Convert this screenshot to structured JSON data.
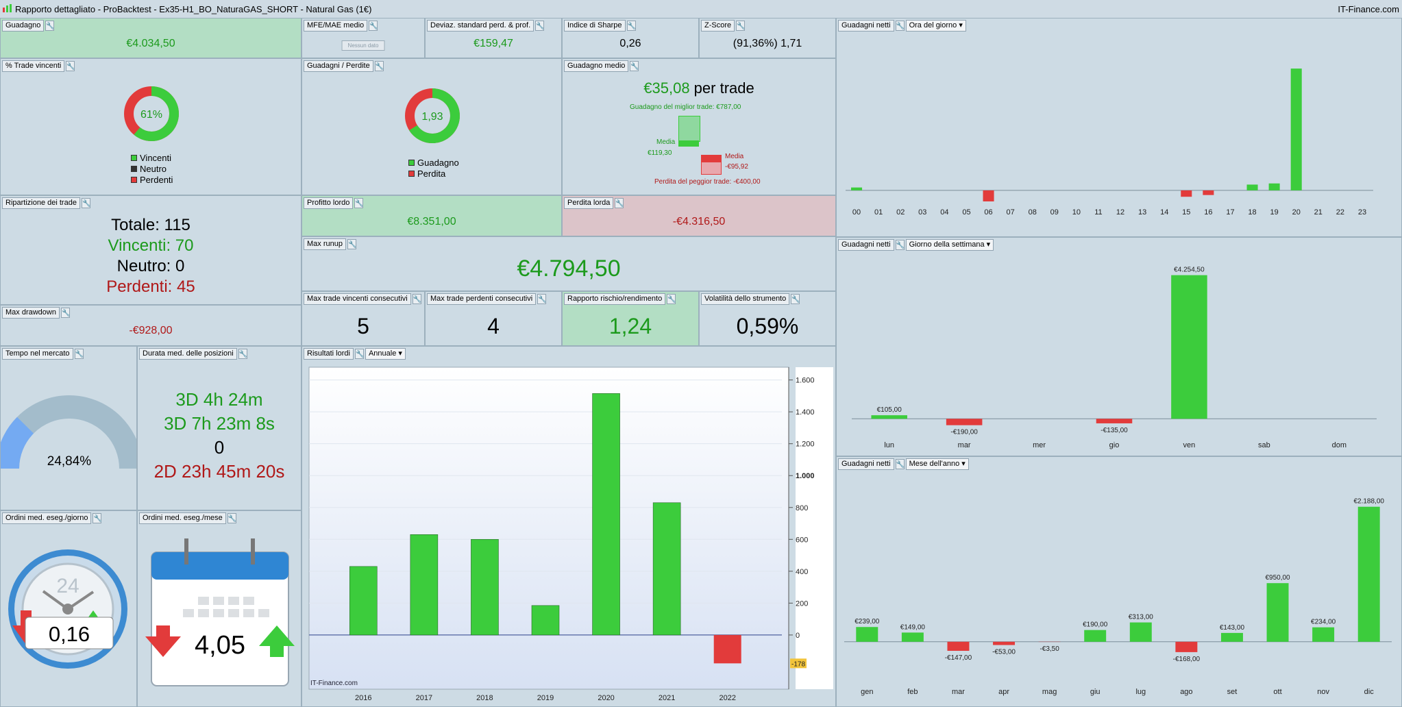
{
  "window": {
    "title": "Rapporto dettagliato - ProBacktest - Ex35-H1_BO_NaturaGAS_SHORT - Natural Gas (1€)",
    "brand": "IT-Finance.com"
  },
  "colors": {
    "green": "#3ccc3c",
    "red": "#e23b3b",
    "green_text": "#1c9a1c",
    "red_text": "#b01818",
    "gauge": "#74aaf2"
  },
  "icons": {
    "wrench": "wrench-icon",
    "dropdown": "chevron-down-icon",
    "clock": "clock-icon",
    "calendar": "calendar-icon",
    "arrow_down": "red-arrow-down-icon",
    "arrow_up": "green-arrow-up-icon"
  },
  "guadagno": {
    "label": "Guadagno",
    "value": "€4.034,50"
  },
  "mfe": {
    "label": "MFE/MAE medio",
    "value": "Nessun dato"
  },
  "deviaz": {
    "label": "Deviaz. standard perd. & prof.",
    "value": "€159,47"
  },
  "sharpe": {
    "label": "Indice di Sharpe",
    "value": "0,26"
  },
  "zscore": {
    "label": "Z-Score",
    "value": "(91,36%) 1,71"
  },
  "winpct": {
    "label": "% Trade vincenti",
    "center": "61%",
    "fraction": 0.61,
    "legend": [
      "Vincenti",
      "Neutro",
      "Perdenti"
    ]
  },
  "gainloss": {
    "label": "Guadagni / Perdite",
    "center": "1,93",
    "fraction": 0.66,
    "legend": [
      "Guadagno",
      "Perdita"
    ]
  },
  "avg": {
    "label": "Guadagno medio",
    "amount": "€35,08",
    "suffix": " per trade",
    "best": "Guadagno del miglior trade: €787,00",
    "media_label": "Media",
    "media_win": "€119,30",
    "media_loss": "-€95,92",
    "worst": "Perdita del peggior trade: -€400,00"
  },
  "breakdown": {
    "label": "Ripartizione dei trade",
    "total": "Totale: 115",
    "win": "Vincenti: 70",
    "neutral": "Neutro: 0",
    "loss": "Perdenti: 45"
  },
  "profitto": {
    "label": "Profitto lordo",
    "value": "€8.351,00"
  },
  "perdita": {
    "label": "Perdita lorda",
    "value": "-€4.316,50"
  },
  "runup": {
    "label": "Max runup",
    "value": "€4.794,50"
  },
  "drawdown": {
    "label": "Max drawdown",
    "value": "-€928,00"
  },
  "maxwin": {
    "label": "Max trade vincenti consecutivi",
    "value": "5"
  },
  "maxloss": {
    "label": "Max trade perdenti consecutivi",
    "value": "4"
  },
  "rr": {
    "label": "Rapporto rischio/rendimento",
    "value": "1,24"
  },
  "vol": {
    "label": "Volatilità dello strumento",
    "value": "0,59%"
  },
  "tempo": {
    "label": "Tempo nel mercato",
    "value": "24,84%",
    "fraction": 0.2484
  },
  "durata": {
    "label": "Durata med. delle posizioni",
    "l1": "3D 4h 24m",
    "l2": "3D 7h 23m 8s",
    "l3": "0",
    "l4": "2D 23h 45m 20s"
  },
  "ordgiorno": {
    "label": "Ordini med. eseg./giorno",
    "value": "0,16",
    "clock_number": "24"
  },
  "ordmese": {
    "label": "Ordini med. eseg./mese",
    "value": "4,05"
  },
  "hourly": {
    "label": "Guadagni netti",
    "dropdown": "Ora del giorno"
  },
  "weekday": {
    "label": "Guadagni netti",
    "dropdown": "Giorno della settimana"
  },
  "monthly": {
    "label": "Guadagni netti",
    "dropdown": "Mese dell'anno"
  },
  "annual": {
    "label": "Risultati lordi",
    "dropdown": "Annuale",
    "watermark": "IT-Finance.com",
    "marker": "-178"
  },
  "chart_data": [
    {
      "id": "hourly",
      "type": "bar",
      "categories": [
        "00",
        "01",
        "02",
        "03",
        "04",
        "05",
        "06",
        "07",
        "08",
        "09",
        "10",
        "11",
        "12",
        "13",
        "14",
        "15",
        "16",
        "17",
        "18",
        "19",
        "20",
        "21",
        "22",
        "23"
      ],
      "values": [
        25,
        0,
        0,
        0,
        0,
        0,
        -95,
        0,
        0,
        0,
        0,
        0,
        0,
        0,
        0,
        -55,
        -40,
        0,
        50,
        60,
        1050,
        0,
        0,
        0
      ],
      "ylim": [
        -160,
        1080
      ]
    },
    {
      "id": "weekday",
      "type": "bar",
      "categories": [
        "lun",
        "mar",
        "mer",
        "gio",
        "ven",
        "sab",
        "dom"
      ],
      "values": [
        105,
        -190,
        0,
        -135,
        4254.5,
        0,
        0
      ],
      "labels": [
        "€105,00",
        "-€190,00",
        "",
        "-€135,00",
        "€4.254,50",
        "",
        ""
      ],
      "ylim": [
        -400,
        4430
      ]
    },
    {
      "id": "monthly",
      "type": "bar",
      "categories": [
        "gen",
        "feb",
        "mar",
        "apr",
        "mag",
        "giu",
        "lug",
        "ago",
        "set",
        "ott",
        "nov",
        "dic"
      ],
      "values": [
        239,
        149,
        -147,
        -53,
        -3.5,
        190,
        313,
        -168,
        143,
        950,
        234,
        2188
      ],
      "labels": [
        "€239,00",
        "€149,00",
        "-€147,00",
        "-€53,00",
        "-€3,50",
        "€190,00",
        "€313,00",
        "-€168,00",
        "€143,00",
        "€950,00",
        "€234,00",
        "€2.188,00"
      ],
      "ylim": [
        -580,
        2440
      ]
    },
    {
      "id": "annual",
      "type": "bar",
      "categories": [
        "2016",
        "2017",
        "2018",
        "2019",
        "2020",
        "2021",
        "2022"
      ],
      "values": [
        430,
        630,
        600,
        185,
        1515,
        830,
        -178
      ],
      "ylim": [
        -340,
        1680
      ],
      "yticks": [
        1600,
        1400,
        1200,
        1000,
        800,
        600,
        400,
        200,
        0
      ]
    }
  ]
}
